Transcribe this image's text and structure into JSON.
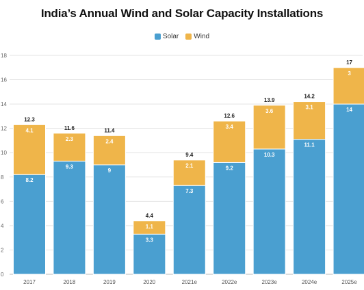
{
  "chart_data": {
    "type": "bar",
    "stacked": true,
    "title": "India’s Annual Wind and Solar Capacity Installations",
    "categories": [
      "2017",
      "2018",
      "2019",
      "2020",
      "2021e",
      "2022e",
      "2023e",
      "2024e",
      "2025e"
    ],
    "series": [
      {
        "name": "Solar",
        "color": "#4a9fd0",
        "values": [
          8.2,
          9.3,
          9,
          3.3,
          7.3,
          9.2,
          10.3,
          11.1,
          14
        ]
      },
      {
        "name": "Wind",
        "color": "#efb54a",
        "values": [
          4.1,
          2.3,
          2.4,
          1.1,
          2.1,
          3.4,
          3.6,
          3.1,
          3
        ]
      }
    ],
    "segment_labels": [
      [
        "8.2",
        "9.3",
        "9",
        "3.3",
        "7.3",
        "9.2",
        "10.3",
        "11.1",
        "14"
      ],
      [
        "4.1",
        "2.3",
        "2.4",
        "1.1",
        "2.1",
        "3.4",
        "3.6",
        "3.1",
        "3"
      ]
    ],
    "totals": [
      "12.3",
      "11.6",
      "11.4",
      "4.4",
      "9.4",
      "12.6",
      "13.9",
      "14.2",
      "17"
    ],
    "ylim": [
      0,
      18
    ],
    "yticks": [
      "0",
      "2",
      "4",
      "6",
      "8",
      "10",
      "12",
      "14",
      "16",
      "18"
    ],
    "grid": true,
    "legend_position": "top-center"
  }
}
